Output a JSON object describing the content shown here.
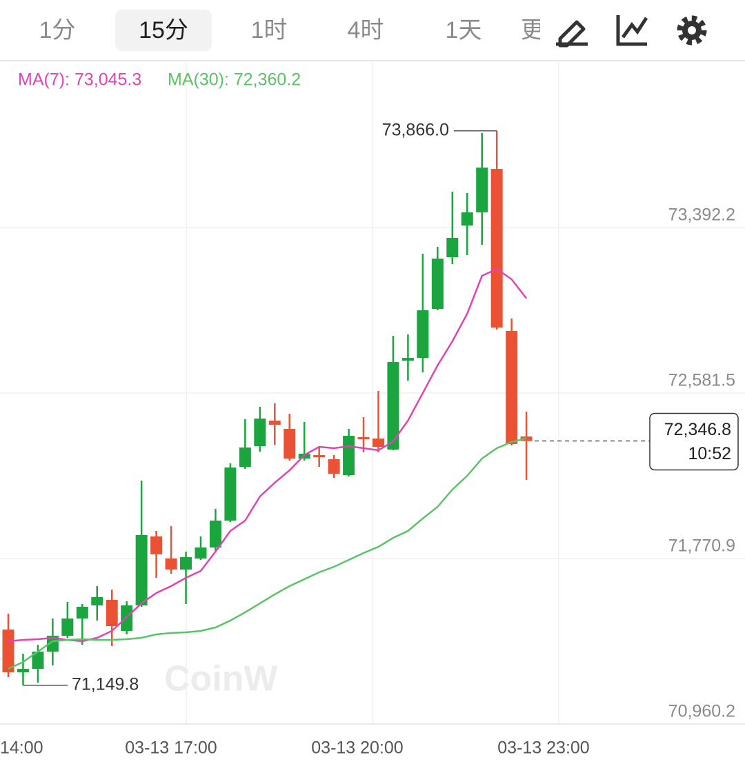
{
  "toolbar": {
    "tabs": [
      "1分",
      "15分",
      "1时",
      "4时",
      "1天",
      "更"
    ],
    "selected": 1
  },
  "chart_data": {
    "type": "candlestick",
    "open": [
      71423.0,
      71213.5,
      71230.4,
      71314.9,
      71392.6,
      71477.0,
      71541.2,
      71568.2,
      71416.2,
      71541.2,
      71879.0,
      71770.9,
      71716.8,
      71770.9,
      71824.9,
      71956.7,
      72220.1,
      72321.5,
      72446.4,
      72405.9,
      72260.7,
      72277.5,
      72257.3,
      72179.6,
      72365.4,
      72358.6,
      72304.6,
      72740.3,
      72753.8,
      72993.6,
      73247.0,
      73402.3,
      73466.5,
      73679.3,
      72885.5,
      72368.7
    ],
    "high": [
      71500.6,
      71304.7,
      71348.6,
      71477.0,
      71558.1,
      71547.9,
      71635.8,
      71618.9,
      71561.4,
      72152.6,
      71906.0,
      71929.6,
      71804.7,
      71879.0,
      72014.1,
      72237.0,
      72453.2,
      72514.0,
      72530.9,
      72480.2,
      72439.7,
      72318.1,
      72277.5,
      72405.9,
      72463.3,
      72591.7,
      72861.9,
      72868.7,
      73263.9,
      73297.6,
      73567.9,
      73561.1,
      73855.0,
      73866.0,
      72946.3,
      72490.3
    ],
    "low": [
      71189.9,
      71149.8,
      71162.9,
      71247.3,
      71382.4,
      71348.6,
      71466.9,
      71341.9,
      71399.3,
      71534.4,
      71676.3,
      71696.6,
      71547.9,
      71764.1,
      71804.7,
      71949.9,
      72210.0,
      72294.4,
      72328.2,
      72250.5,
      72250.5,
      72220.1,
      72166.1,
      72172.8,
      72291.1,
      72291.1,
      72301.2,
      72642.3,
      72682.9,
      72986.9,
      73213.2,
      73257.1,
      73307.8,
      72892.3,
      72324.8,
      72155.9
    ],
    "close": [
      71213.5,
      71230.4,
      71314.9,
      71392.6,
      71477.0,
      71534.4,
      71581.7,
      71439.8,
      71541.2,
      71885.7,
      71791.1,
      71716.8,
      71777.6,
      71824.9,
      71956.7,
      72216.7,
      72314.7,
      72456.6,
      72426.2,
      72260.7,
      72284.3,
      72270.8,
      72186.3,
      72372.1,
      72358.6,
      72318.1,
      72733.5,
      72753.8,
      72986.9,
      73240.2,
      73341.5,
      73466.5,
      73686.1,
      72902.4,
      72331.6,
      72346.8
    ],
    "up_color": "#1aa53e",
    "down_color": "#ea5233",
    "series": [
      {
        "name": "MA(7): 73,045.3",
        "color": "#e043b4",
        "values": [
          71365.5,
          71372.3,
          71375.7,
          71382.4,
          71372.3,
          71365.5,
          71382.4,
          71416.2,
          71483.8,
          71551.3,
          71602.0,
          71635.8,
          71676.3,
          71710.1,
          71804.7,
          71906.0,
          71956.7,
          72074.9,
          72142.4,
          72203.2,
          72277.5,
          72318.1,
          72311.3,
          72321.5,
          72311.3,
          72301.2,
          72345.1,
          72446.4,
          72581.5,
          72716.7,
          72834.9,
          72970.0,
          73155.8,
          73189.5,
          73138.9,
          73045.3
        ]
      },
      {
        "name": "MA(30): 72,360.2",
        "color": "#5cc266",
        "values": [
          71230.4,
          71264.2,
          71314.9,
          71365.5,
          71372.3,
          71375.7,
          71372.3,
          71372.3,
          71375.7,
          71382.4,
          71399.3,
          71406.1,
          71409.4,
          71416.2,
          71433.1,
          71466.9,
          71507.4,
          71551.3,
          71595.2,
          71635.8,
          71669.5,
          71703.3,
          71730.3,
          71764.1,
          71797.9,
          71828.3,
          71872.2,
          71906.0,
          71966.8,
          72024.2,
          72108.7,
          72176.2,
          72260.7,
          72311.3,
          72341.7,
          72360.2
        ]
      }
    ],
    "ylim": [
      70960.2,
      74203
    ],
    "yticks": [
      {
        "value": 70960.2,
        "label": "70,960.2"
      },
      {
        "value": 71770.9,
        "label": "71,770.9"
      },
      {
        "value": 72581.5,
        "label": "72,581.5"
      },
      {
        "value": 73392.2,
        "label": "73,392.2"
      }
    ],
    "xticks": [
      "14:00",
      "03-13 17:00",
      "03-13 20:00",
      "03-13 23:00"
    ],
    "grid": true,
    "annotations": {
      "high": "73,866.0",
      "low": "71,149.8",
      "last_price": "72,346.8",
      "countdown": "10:52"
    },
    "watermark": "CoinW"
  }
}
